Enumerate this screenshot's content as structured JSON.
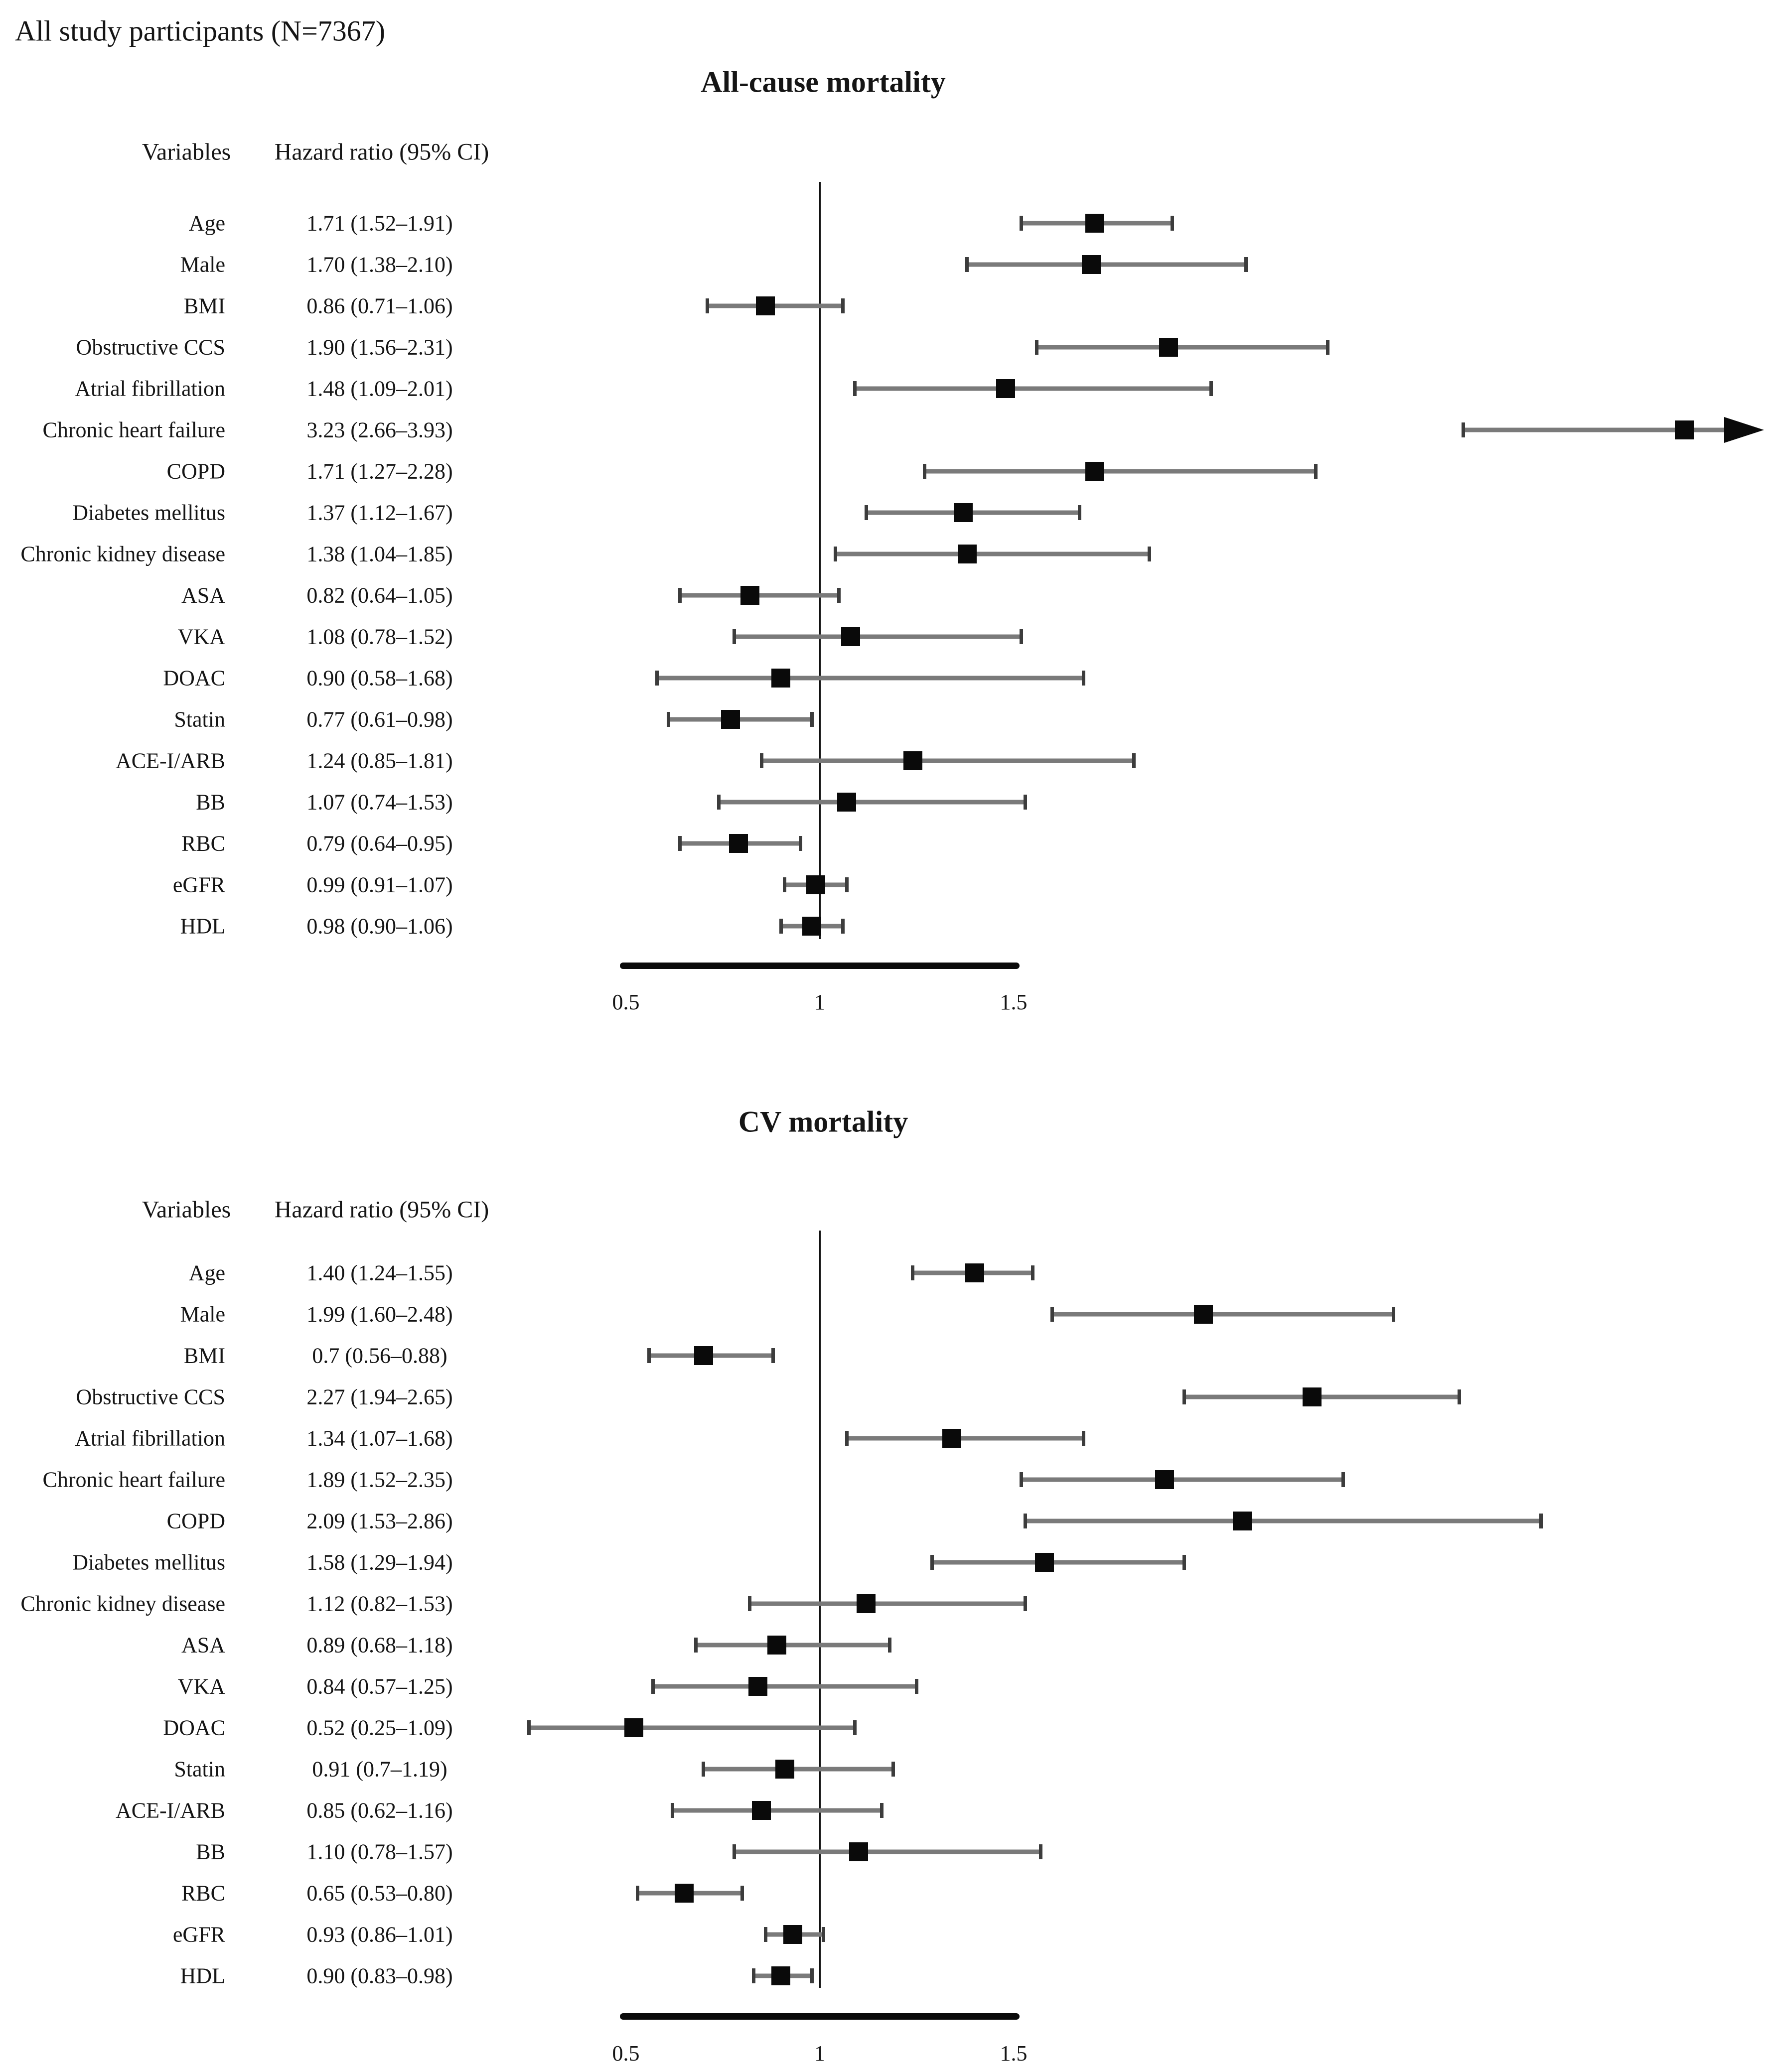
{
  "chart_data": {
    "type": "forest",
    "title": "All study participants (N=7367)",
    "axis": {
      "ticks": [
        0.5,
        1,
        1.5
      ],
      "tick_labels": [
        "0.5",
        "1",
        "1.5"
      ],
      "reference_value": 1,
      "xlim": [
        0.5,
        1.5
      ],
      "grid": false
    },
    "panels": [
      {
        "title": "All-cause mortality",
        "headers": {
          "variables": "Variables",
          "hazard": "Hazard ratio (95% CI)"
        },
        "rows": [
          {
            "label": "Age",
            "text": "1.71 (1.52–1.91)",
            "hr": 1.71,
            "lo": 1.52,
            "hi": 1.91
          },
          {
            "label": "Male",
            "text": "1.70 (1.38–2.10)",
            "hr": 1.7,
            "lo": 1.38,
            "hi": 2.1
          },
          {
            "label": "BMI",
            "text": "0.86 (0.71–1.06)",
            "hr": 0.86,
            "lo": 0.71,
            "hi": 1.06
          },
          {
            "label": "Obstructive CCS",
            "text": "1.90 (1.56–2.31)",
            "hr": 1.9,
            "lo": 1.56,
            "hi": 2.31
          },
          {
            "label": "Atrial fibrillation",
            "text": "1.48 (1.09–2.01)",
            "hr": 1.48,
            "lo": 1.09,
            "hi": 2.01
          },
          {
            "label": "Chronic heart failure",
            "text": "3.23 (2.66–3.93)",
            "hr": 3.23,
            "lo": 2.66,
            "hi": 3.93,
            "clipped_high": true
          },
          {
            "label": "COPD",
            "text": "1.71 (1.27–2.28)",
            "hr": 1.71,
            "lo": 1.27,
            "hi": 2.28
          },
          {
            "label": "Diabetes mellitus",
            "text": "1.37 (1.12–1.67)",
            "hr": 1.37,
            "lo": 1.12,
            "hi": 1.67
          },
          {
            "label": "Chronic kidney disease",
            "text": "1.38 (1.04–1.85)",
            "hr": 1.38,
            "lo": 1.04,
            "hi": 1.85
          },
          {
            "label": "ASA",
            "text": "0.82 (0.64–1.05)",
            "hr": 0.82,
            "lo": 0.64,
            "hi": 1.05
          },
          {
            "label": "VKA",
            "text": "1.08 (0.78–1.52)",
            "hr": 1.08,
            "lo": 0.78,
            "hi": 1.52
          },
          {
            "label": "DOAC",
            "text": "0.90 (0.58–1.68)",
            "hr": 0.9,
            "lo": 0.58,
            "hi": 1.68
          },
          {
            "label": "Statin",
            "text": "0.77 (0.61–0.98)",
            "hr": 0.77,
            "lo": 0.61,
            "hi": 0.98
          },
          {
            "label": "ACE-I/ARB",
            "text": "1.24 (0.85–1.81)",
            "hr": 1.24,
            "lo": 0.85,
            "hi": 1.81
          },
          {
            "label": "BB",
            "text": "1.07 (0.74–1.53)",
            "hr": 1.07,
            "lo": 0.74,
            "hi": 1.53
          },
          {
            "label": "RBC",
            "text": "0.79 (0.64–0.95)",
            "hr": 0.79,
            "lo": 0.64,
            "hi": 0.95
          },
          {
            "label": "eGFR",
            "text": "0.99 (0.91–1.07)",
            "hr": 0.99,
            "lo": 0.91,
            "hi": 1.07
          },
          {
            "label": "HDL",
            "text": "0.98 (0.90–1.06)",
            "hr": 0.98,
            "lo": 0.9,
            "hi": 1.06
          }
        ]
      },
      {
        "title": "CV mortality",
        "headers": {
          "variables": "Variables",
          "hazard": "Hazard ratio (95% CI)"
        },
        "rows": [
          {
            "label": "Age",
            "text": "1.40 (1.24–1.55)",
            "hr": 1.4,
            "lo": 1.24,
            "hi": 1.55
          },
          {
            "label": "Male",
            "text": "1.99 (1.60–2.48)",
            "hr": 1.99,
            "lo": 1.6,
            "hi": 2.48
          },
          {
            "label": "BMI",
            "text": "0.7 (0.56–0.88)",
            "hr": 0.7,
            "lo": 0.56,
            "hi": 0.88
          },
          {
            "label": "Obstructive CCS",
            "text": "2.27 (1.94–2.65)",
            "hr": 2.27,
            "lo": 1.94,
            "hi": 2.65
          },
          {
            "label": "Atrial fibrillation",
            "text": "1.34 (1.07–1.68)",
            "hr": 1.34,
            "lo": 1.07,
            "hi": 1.68
          },
          {
            "label": "Chronic heart failure",
            "text": "1.89 (1.52–2.35)",
            "hr": 1.89,
            "lo": 1.52,
            "hi": 2.35
          },
          {
            "label": "COPD",
            "text": "2.09 (1.53–2.86)",
            "hr": 2.09,
            "lo": 1.53,
            "hi": 2.86
          },
          {
            "label": "Diabetes mellitus",
            "text": "1.58 (1.29–1.94)",
            "hr": 1.58,
            "lo": 1.29,
            "hi": 1.94
          },
          {
            "label": "Chronic kidney disease",
            "text": "1.12 (0.82–1.53)",
            "hr": 1.12,
            "lo": 0.82,
            "hi": 1.53
          },
          {
            "label": "ASA",
            "text": "0.89 (0.68–1.18)",
            "hr": 0.89,
            "lo": 0.68,
            "hi": 1.18
          },
          {
            "label": "VKA",
            "text": "0.84 (0.57–1.25)",
            "hr": 0.84,
            "lo": 0.57,
            "hi": 1.25
          },
          {
            "label": "DOAC",
            "text": "0.52 (0.25–1.09)",
            "hr": 0.52,
            "lo": 0.25,
            "hi": 1.09
          },
          {
            "label": "Statin",
            "text": "0.91 (0.7–1.19)",
            "hr": 0.91,
            "lo": 0.7,
            "hi": 1.19
          },
          {
            "label": "ACE-I/ARB",
            "text": "0.85 (0.62–1.16)",
            "hr": 0.85,
            "lo": 0.62,
            "hi": 1.16
          },
          {
            "label": "BB",
            "text": "1.10 (0.78–1.57)",
            "hr": 1.1,
            "lo": 0.78,
            "hi": 1.57
          },
          {
            "label": "RBC",
            "text": "0.65 (0.53–0.80)",
            "hr": 0.65,
            "lo": 0.53,
            "hi": 0.8
          },
          {
            "label": "eGFR",
            "text": "0.93 (0.86–1.01)",
            "hr": 0.93,
            "lo": 0.86,
            "hi": 1.01
          },
          {
            "label": "HDL",
            "text": "0.90 (0.83–0.98)",
            "hr": 0.9,
            "lo": 0.83,
            "hi": 0.98
          }
        ]
      }
    ]
  }
}
